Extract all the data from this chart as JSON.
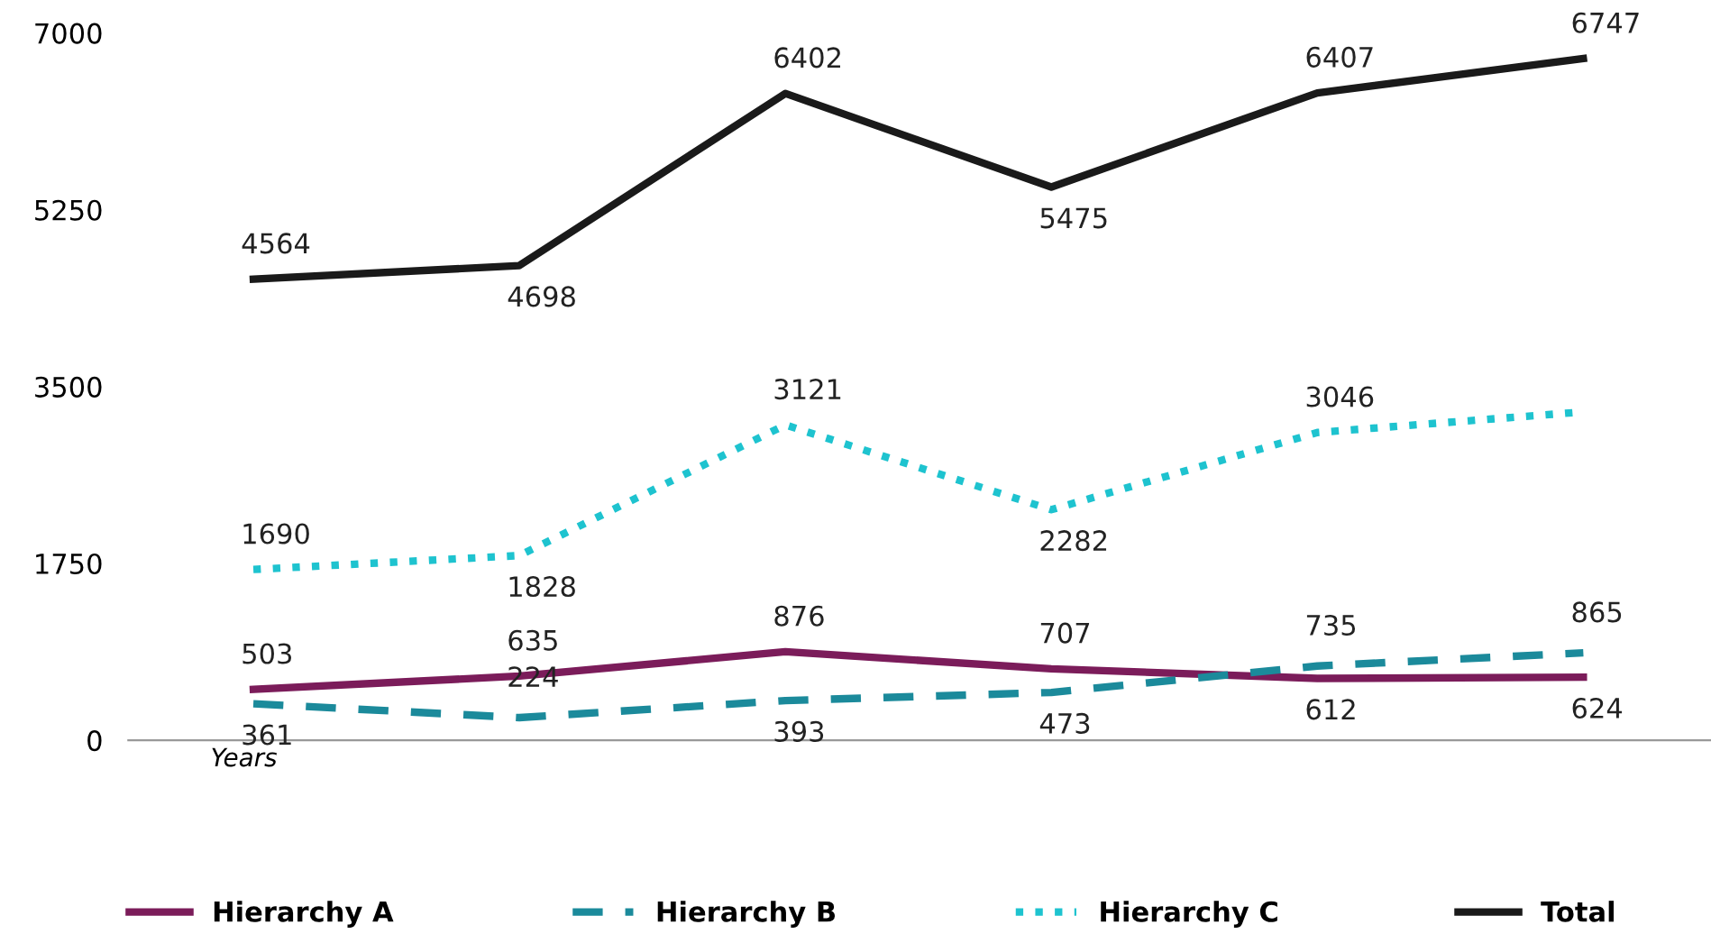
{
  "chart_data": {
    "type": "line",
    "xlabel": "Years",
    "categories": [
      null,
      null,
      null,
      null,
      null,
      null
    ],
    "series": [
      {
        "name": "Hierarchy A",
        "color": "#7b1c5a",
        "line_style": "solid",
        "values": [
          503,
          635,
          876,
          707,
          612,
          624
        ],
        "value_labels": [
          "503",
          "635",
          "876",
          "707",
          "612",
          "624"
        ]
      },
      {
        "name": "Hierarchy B",
        "color": "#1b8a9b",
        "line_style": "dashed",
        "values": [
          361,
          224,
          393,
          473,
          735,
          865
        ],
        "value_labels": [
          "361",
          "224",
          "393",
          "473",
          "735",
          "865"
        ]
      },
      {
        "name": "Hierarchy C",
        "color": "#1ec3cf",
        "line_style": "dotted",
        "values": [
          1690,
          1828,
          3121,
          2282,
          3046,
          3250
        ],
        "value_labels": [
          "1690",
          "1828",
          "3121",
          "2282",
          "3046",
          null
        ]
      },
      {
        "name": "Total",
        "color": "#1a1a1a",
        "line_style": "solid",
        "values": [
          4564,
          4698,
          6402,
          5475,
          6407,
          6747
        ],
        "value_labels": [
          "4564",
          "4698",
          "6402",
          "5475",
          "6407",
          "6747"
        ]
      }
    ],
    "ylim": [
      0,
      7000
    ],
    "yticks": [
      0,
      1750,
      3500,
      5250,
      7000
    ],
    "grid": false,
    "legend": "bottom",
    "marker": "none"
  }
}
